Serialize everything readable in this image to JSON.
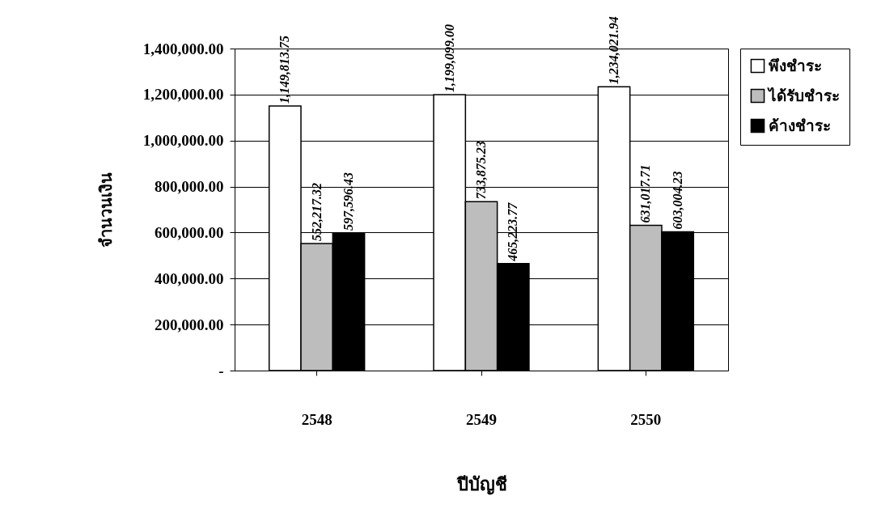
{
  "chart_data": {
    "type": "bar",
    "xlabel": "ปีบัญชี",
    "ylabel": "จำนวนเงิน",
    "categories": [
      "2548",
      "2549",
      "2550"
    ],
    "series": [
      {
        "name": "พึงชำระ",
        "color": "#ffffff",
        "values": [
          1149813.75,
          1199099.0,
          1234021.94
        ],
        "value_labels": [
          "1,149,813.75",
          "1,199,099.00",
          "1,234,021.94"
        ]
      },
      {
        "name": "ได้รับชำระ",
        "color": "#bdbdbd",
        "values": [
          552217.32,
          733875.23,
          631017.71
        ],
        "value_labels": [
          "552,217.32",
          "733,875.23",
          "631,017.71"
        ]
      },
      {
        "name": "ค้างชำระ",
        "color": "#000000",
        "values": [
          597596.43,
          465223.77,
          603004.23
        ],
        "value_labels": [
          "597,596.43",
          "465,223.77",
          "603,004.23"
        ]
      }
    ],
    "ylim": [
      0,
      1400000
    ],
    "yticks": [
      {
        "value": 0,
        "label": "-"
      },
      {
        "value": 200000,
        "label": "200,000.00"
      },
      {
        "value": 400000,
        "label": "400,000.00"
      },
      {
        "value": 600000,
        "label": "600,000.00"
      },
      {
        "value": 800000,
        "label": "800,000.00"
      },
      {
        "value": 1000000,
        "label": "1,000,000.00"
      },
      {
        "value": 1200000,
        "label": "1,200,000.00"
      },
      {
        "value": 1400000,
        "label": "1,400,000.00"
      }
    ],
    "grid": "y",
    "legend": "right"
  }
}
